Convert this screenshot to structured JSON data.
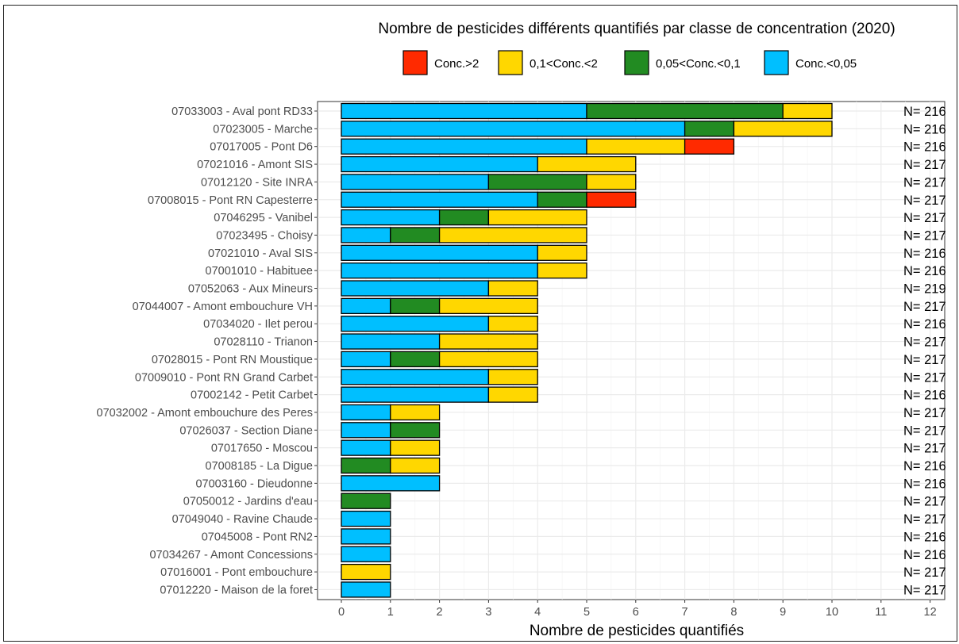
{
  "chart_data": {
    "type": "bar",
    "orientation": "horizontal",
    "stacked": true,
    "title": "Nombre de pesticides différents quantifiés par classe de concentration (2020)",
    "xlabel": "Nombre de pesticides quantifiés",
    "ylabel": "",
    "xlim": [
      0,
      12
    ],
    "xticks": [
      "0",
      "1",
      "2",
      "3",
      "4",
      "5",
      "6",
      "7",
      "8",
      "9",
      "10",
      "11",
      "12"
    ],
    "grid": true,
    "legend_position": "top",
    "categories": [
      "07033003 - Aval pont RD33",
      "07023005 - Marche",
      "07017005 - Pont D6",
      "07021016 - Amont SIS",
      "07012120 - Site INRA",
      "07008015 - Pont RN Capesterre",
      "07046295 - Vanibel",
      "07023495 - Choisy",
      "07021010 - Aval SIS",
      "07001010 - Habituee",
      "07052063 - Aux Mineurs",
      "07044007 - Amont embouchure VH",
      "07034020 - Ilet perou",
      "07028110 - Trianon",
      "07028015 - Pont RN Moustique",
      "07009010 - Pont RN Grand Carbet",
      "07002142 - Petit Carbet",
      "07032002 - Amont embouchure des Peres",
      "07026037 - Section Diane",
      "07017650 - Moscou",
      "07008185 - La Digue",
      "07003160 - Dieudonne",
      "07050012 - Jardins d'eau",
      "07049040 - Ravine Chaude",
      "07045008 - Pont RN2",
      "07034267 - Amont Concessions",
      "07016001 - Pont embouchure",
      "07012220 - Maison de la foret"
    ],
    "series": [
      {
        "name": "Conc.<0,05",
        "color": "#00BFFF",
        "values": [
          5,
          7,
          5,
          4,
          3,
          4,
          2,
          1,
          4,
          4,
          3,
          1,
          3,
          2,
          1,
          3,
          3,
          1,
          1,
          1,
          0,
          2,
          0,
          1,
          1,
          1,
          0,
          1
        ]
      },
      {
        "name": "0,05<Conc.<0,1",
        "color": "#228B22",
        "values": [
          4,
          1,
          0,
          0,
          2,
          1,
          1,
          1,
          0,
          0,
          0,
          1,
          0,
          0,
          1,
          0,
          0,
          0,
          1,
          0,
          1,
          0,
          1,
          0,
          0,
          0,
          0,
          0
        ]
      },
      {
        "name": "0,1<Conc.<2",
        "color": "#FFD700",
        "values": [
          1,
          2,
          2,
          2,
          1,
          0,
          2,
          3,
          1,
          1,
          1,
          2,
          1,
          2,
          2,
          1,
          1,
          1,
          0,
          1,
          1,
          0,
          0,
          0,
          0,
          0,
          1,
          0
        ]
      },
      {
        "name": "Conc.>2",
        "color": "#FF2A00",
        "values": [
          0,
          0,
          1,
          0,
          0,
          1,
          0,
          0,
          0,
          0,
          0,
          0,
          0,
          0,
          0,
          0,
          0,
          0,
          0,
          0,
          0,
          0,
          0,
          0,
          0,
          0,
          0,
          0
        ]
      }
    ],
    "legend_order": [
      "Conc.>2",
      "0,1<Conc.<2",
      "0,05<Conc.<0,1",
      "Conc.<0,05"
    ],
    "n_labels": [
      "N= 216",
      "N= 216",
      "N= 216",
      "N= 217",
      "N= 217",
      "N= 217",
      "N= 217",
      "N= 217",
      "N= 216",
      "N= 216",
      "N= 219",
      "N= 217",
      "N= 216",
      "N= 217",
      "N= 217",
      "N= 217",
      "N= 216",
      "N= 217",
      "N= 217",
      "N= 217",
      "N= 216",
      "N= 216",
      "N= 217",
      "N= 217",
      "N= 216",
      "N= 216",
      "N= 217",
      "N= 217"
    ]
  }
}
